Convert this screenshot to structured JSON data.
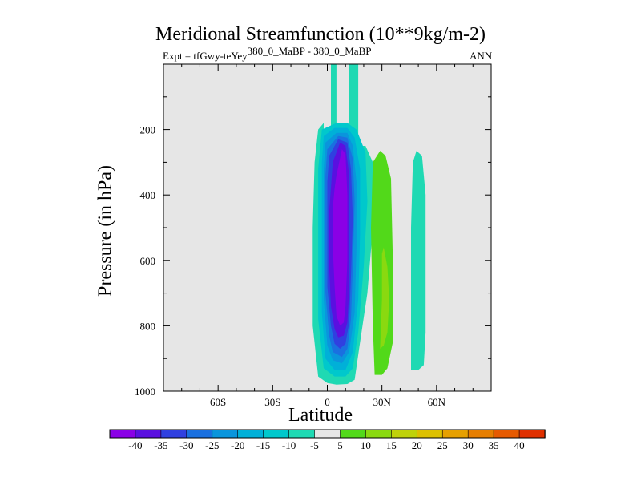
{
  "chart_data": {
    "type": "heatmap",
    "title": "Meridional Streamfunction (10**9kg/m-2)",
    "subtitle_left": "Expt = tfGwy-teYey",
    "subtitle_super": "380_0_MaBP - 380_0_MaBP",
    "subtitle_right": "ANN",
    "xlabel": "Latitude",
    "ylabel": "Pressure (in hPa)",
    "xlim": [
      -90,
      90
    ],
    "ylim": [
      1000,
      0
    ],
    "x_ticks": [
      {
        "value": -60,
        "label": "60S"
      },
      {
        "value": -30,
        "label": "30S"
      },
      {
        "value": 0,
        "label": "0"
      },
      {
        "value": 30,
        "label": "30N"
      },
      {
        "value": 60,
        "label": "60N"
      }
    ],
    "y_ticks": [
      {
        "value": 200,
        "label": "200"
      },
      {
        "value": 400,
        "label": "400"
      },
      {
        "value": 600,
        "label": "600"
      },
      {
        "value": 800,
        "label": "800"
      },
      {
        "value": 1000,
        "label": "1000"
      }
    ],
    "colorbar": {
      "levels": [
        "-40",
        "-35",
        "-30",
        "-25",
        "-20",
        "-15",
        "-10",
        "-5",
        "5",
        "10",
        "15",
        "20",
        "25",
        "30",
        "35",
        "40"
      ],
      "colors": [
        "#8a00e6",
        "#5a10e0",
        "#3040e0",
        "#1a70e0",
        "#0a95dc",
        "#00b0d8",
        "#00c8cc",
        "#1fd9b3",
        "#e6e6e6",
        "#52d91a",
        "#8ad910",
        "#bfd20a",
        "#dcc000",
        "#e6a000",
        "#e67e00",
        "#e65a00",
        "#e03000"
      ]
    },
    "background_color": "#e6e6e6",
    "contours": [
      {
        "level_index": 7,
        "points": [
          [
            -2,
            1000
          ],
          [
            -2,
            250
          ],
          [
            2,
            250
          ],
          [
            2,
            0
          ],
          [
            5,
            0
          ],
          [
            5,
            210
          ],
          [
            12,
            210
          ],
          [
            12,
            0
          ],
          [
            17,
            0
          ],
          [
            17,
            250
          ],
          [
            21,
            250
          ],
          [
            25,
            300
          ],
          [
            25,
            500
          ],
          [
            22,
            700
          ],
          [
            18,
            850
          ],
          [
            15,
            965
          ],
          [
            11,
            978
          ],
          [
            5,
            980
          ],
          [
            0,
            975
          ],
          [
            -5,
            955
          ],
          [
            -8,
            800
          ],
          [
            -8,
            500
          ],
          [
            -7,
            300
          ],
          [
            -5,
            200
          ],
          [
            -2,
            180
          ],
          [
            -2,
            100
          ],
          [
            -2,
            1000
          ]
        ]
      },
      {
        "level_index": 6,
        "points": [
          [
            -3,
            200
          ],
          [
            5,
            180
          ],
          [
            11,
            180
          ],
          [
            16,
            200
          ],
          [
            21,
            270
          ],
          [
            22,
            420
          ],
          [
            20,
            620
          ],
          [
            17,
            820
          ],
          [
            14,
            930
          ],
          [
            10,
            955
          ],
          [
            4,
            955
          ],
          [
            -2,
            930
          ],
          [
            -5,
            780
          ],
          [
            -5,
            500
          ],
          [
            -5,
            320
          ]
        ]
      },
      {
        "level_index": 5,
        "points": [
          [
            -2,
            220
          ],
          [
            4,
            195
          ],
          [
            11,
            195
          ],
          [
            15,
            225
          ],
          [
            18,
            320
          ],
          [
            18,
            520
          ],
          [
            17,
            720
          ],
          [
            14,
            880
          ],
          [
            10,
            935
          ],
          [
            4,
            935
          ],
          [
            -1,
            900
          ],
          [
            -3,
            760
          ],
          [
            -3,
            480
          ],
          [
            -3,
            300
          ]
        ]
      },
      {
        "level_index": 4,
        "points": [
          [
            -1,
            240
          ],
          [
            5,
            210
          ],
          [
            11,
            210
          ],
          [
            14,
            250
          ],
          [
            16,
            360
          ],
          [
            16,
            560
          ],
          [
            15,
            760
          ],
          [
            12,
            880
          ],
          [
            8,
            915
          ],
          [
            3,
            905
          ],
          [
            0,
            860
          ],
          [
            -2,
            720
          ],
          [
            -2,
            450
          ],
          [
            -2,
            320
          ]
        ]
      },
      {
        "level_index": 3,
        "points": [
          [
            0,
            260
          ],
          [
            6,
            220
          ],
          [
            11,
            225
          ],
          [
            14,
            290
          ],
          [
            15,
            420
          ],
          [
            14,
            620
          ],
          [
            13,
            780
          ],
          [
            11,
            870
          ],
          [
            8,
            895
          ],
          [
            3,
            880
          ],
          [
            1,
            830
          ],
          [
            -1,
            700
          ],
          [
            -1,
            450
          ],
          [
            -1,
            340
          ]
        ]
      },
      {
        "level_index": 2,
        "points": [
          [
            1,
            280
          ],
          [
            6,
            230
          ],
          [
            11,
            240
          ],
          [
            13,
            320
          ],
          [
            14,
            470
          ],
          [
            13,
            650
          ],
          [
            12,
            790
          ],
          [
            10,
            855
          ],
          [
            7,
            870
          ],
          [
            4,
            855
          ],
          [
            2,
            800
          ],
          [
            0,
            680
          ],
          [
            0,
            450
          ],
          [
            0,
            360
          ]
        ]
      },
      {
        "level_index": 1,
        "points": [
          [
            3,
            300
          ],
          [
            7,
            240
          ],
          [
            10,
            250
          ],
          [
            12,
            340
          ],
          [
            12,
            520
          ],
          [
            12,
            690
          ],
          [
            11,
            790
          ],
          [
            9,
            830
          ],
          [
            6,
            835
          ],
          [
            4,
            810
          ],
          [
            2,
            740
          ],
          [
            1,
            620
          ],
          [
            1,
            450
          ],
          [
            2,
            380
          ]
        ]
      },
      {
        "level_index": 0,
        "points": [
          [
            5,
            340
          ],
          [
            8,
            260
          ],
          [
            10,
            275
          ],
          [
            11,
            400
          ],
          [
            11,
            600
          ],
          [
            10,
            740
          ],
          [
            9,
            790
          ],
          [
            7,
            800
          ],
          [
            5,
            770
          ],
          [
            4,
            680
          ],
          [
            3,
            560
          ],
          [
            3,
            440
          ],
          [
            4,
            380
          ]
        ]
      },
      {
        "level_index": 9,
        "points": [
          [
            26,
            950
          ],
          [
            25,
            800
          ],
          [
            24,
            500
          ],
          [
            25,
            300
          ],
          [
            29,
            265
          ],
          [
            32,
            280
          ],
          [
            35,
            350
          ],
          [
            36,
            600
          ],
          [
            36,
            850
          ],
          [
            33,
            930
          ],
          [
            30,
            950
          ]
        ]
      },
      {
        "level_index": 10,
        "points": [
          [
            29,
            870
          ],
          [
            30,
            720
          ],
          [
            30,
            580
          ],
          [
            31,
            560
          ],
          [
            33,
            620
          ],
          [
            34,
            720
          ],
          [
            33,
            820
          ],
          [
            31,
            860
          ]
        ]
      },
      {
        "level_index": 7,
        "points": [
          [
            46,
            935
          ],
          [
            46,
            800
          ],
          [
            46,
            500
          ],
          [
            47,
            300
          ],
          [
            49,
            265
          ],
          [
            52,
            280
          ],
          [
            54,
            400
          ],
          [
            54,
            820
          ],
          [
            53,
            920
          ],
          [
            50,
            935
          ]
        ]
      }
    ]
  }
}
